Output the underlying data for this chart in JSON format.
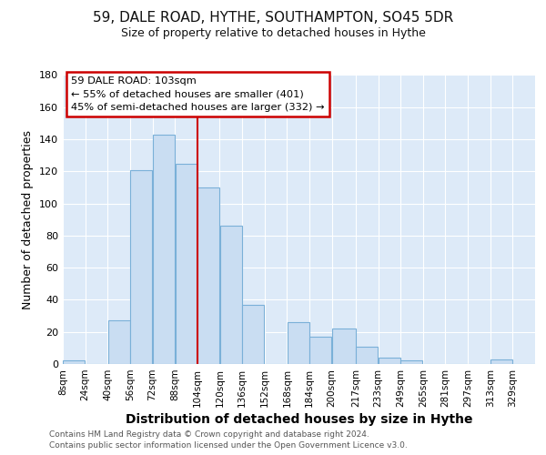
{
  "title": "59, DALE ROAD, HYTHE, SOUTHAMPTON, SO45 5DR",
  "subtitle": "Size of property relative to detached houses in Hythe",
  "xlabel": "Distribution of detached houses by size in Hythe",
  "ylabel": "Number of detached properties",
  "bar_color": "#c9ddf2",
  "bar_edge_color": "#7ab0d8",
  "plot_background_color": "#ddeaf8",
  "fig_background_color": "#ffffff",
  "grid_color": "#ffffff",
  "vline_x": 104,
  "vline_color": "#cc0000",
  "annotation_title": "59 DALE ROAD: 103sqm",
  "annotation_line1": "← 55% of detached houses are smaller (401)",
  "annotation_line2": "45% of semi-detached houses are larger (332) →",
  "annotation_box_facecolor": "#ffffff",
  "annotation_box_edgecolor": "#cc0000",
  "bin_edges": [
    8,
    24,
    40,
    56,
    72,
    88,
    104,
    120,
    136,
    152,
    168,
    184,
    200,
    217,
    233,
    249,
    265,
    281,
    297,
    313,
    329,
    345
  ],
  "bin_labels": [
    "8sqm",
    "24sqm",
    "40sqm",
    "56sqm",
    "72sqm",
    "88sqm",
    "104sqm",
    "120sqm",
    "136sqm",
    "152sqm",
    "168sqm",
    "184sqm",
    "200sqm",
    "217sqm",
    "233sqm",
    "249sqm",
    "265sqm",
    "281sqm",
    "297sqm",
    "313sqm",
    "329sqm"
  ],
  "counts": [
    2,
    0,
    27,
    121,
    143,
    125,
    110,
    86,
    37,
    0,
    26,
    17,
    22,
    11,
    4,
    2,
    0,
    0,
    0,
    3,
    0
  ],
  "ylim": [
    0,
    180
  ],
  "yticks": [
    0,
    20,
    40,
    60,
    80,
    100,
    120,
    140,
    160,
    180
  ],
  "title_fontsize": 11,
  "subtitle_fontsize": 9,
  "xlabel_fontsize": 10,
  "ylabel_fontsize": 9,
  "tick_fontsize": 7.5,
  "footer1": "Contains HM Land Registry data © Crown copyright and database right 2024.",
  "footer2": "Contains public sector information licensed under the Open Government Licence v3.0."
}
